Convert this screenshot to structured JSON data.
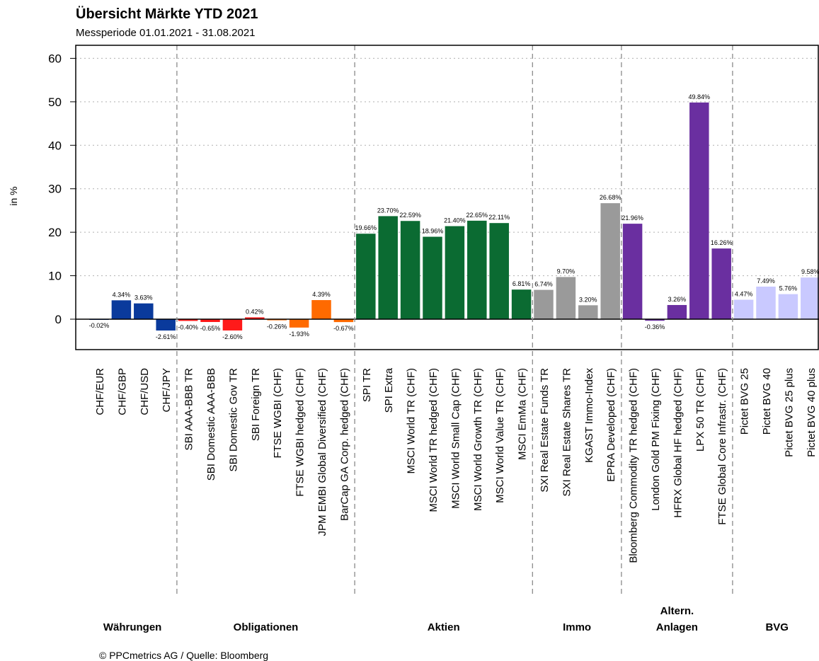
{
  "title": "Übersicht Märkte YTD 2021",
  "subtitle": "Messperiode 01.01.2021 - 31.08.2021",
  "footer": "© PPCmetrics AG / Quelle: Bloomberg",
  "chart_data": {
    "type": "bar",
    "ylabel": "in %",
    "ylim": [
      -7,
      63
    ],
    "yticks": [
      0,
      10,
      20,
      30,
      40,
      50,
      60
    ],
    "grid": true,
    "categories": [
      "CHF/EUR",
      "CHF/GBP",
      "CHF/USD",
      "CHF/JPY",
      "SBI AAA-BBB TR",
      "SBI Domestic AAA-BBB",
      "SBI Domestic Gov TR",
      "SBI Foreign TR",
      "FTSE WGBI (CHF)",
      "FTSE WGBI hedged (CHF)",
      "JPM EMBI Global Diversified (CHF)",
      "BarCap GA Corp. hedged (CHF)",
      "SPI TR",
      "SPI Extra",
      "MSCI World TR (CHF)",
      "MSCI World TR hedged (CHF)",
      "MSCI World Small Cap (CHF)",
      "MSCI World Growth TR (CHF)",
      "MSCI World Value TR (CHF)",
      "MSCI EmMa (CHF)",
      "SXI Real Estate Funds TR",
      "SXI Real Estate Shares TR",
      "KGAST Immo-Index",
      "EPRA Developed (CHF)",
      "Bloomberg Commodity TR hedged (CHF)",
      "London Gold PM Fixing (CHF)",
      "HFRX Global HF hedged (CHF)",
      "LPX 50 TR (CHF)",
      "FTSE Global Core Infrastr. (CHF)",
      "Pictet BVG 25",
      "Pictet BVG 40",
      "Pictet BVG 25 plus",
      "Pictet BVG 40 plus"
    ],
    "values": [
      -0.02,
      4.34,
      3.63,
      -2.61,
      -0.4,
      -0.65,
      -2.6,
      0.42,
      -0.26,
      -1.93,
      4.39,
      -0.67,
      19.66,
      23.7,
      22.59,
      18.96,
      21.4,
      22.65,
      22.11,
      6.81,
      6.74,
      9.7,
      3.2,
      26.68,
      21.96,
      -0.36,
      3.26,
      49.84,
      16.26,
      4.47,
      7.49,
      5.76,
      9.58
    ],
    "value_labels": [
      "-0.02%",
      "4.34%",
      "3.63%",
      "-2.61%",
      "-0.40%",
      "-0.65%",
      "-2.60%",
      "0.42%",
      "-0.26%",
      "-1.93%",
      "4.39%",
      "-0.67%",
      "19.66%",
      "23.70%",
      "22.59%",
      "18.96%",
      "21.40%",
      "22.65%",
      "22.11%",
      "6.81%",
      "6.74%",
      "9.70%",
      "3.20%",
      "26.68%",
      "21.96%",
      "-0.36%",
      "3.26%",
      "49.84%",
      "16.26%",
      "4.47%",
      "7.49%",
      "5.76%",
      "9.58%"
    ],
    "groups": [
      {
        "name": "Währungen",
        "count": 4,
        "color": "#0a3a9c"
      },
      {
        "name": "Obligationen",
        "count": 8,
        "color": "#ff1a1a",
        "alt_color": "#ff6a00",
        "alt_from": 4
      },
      {
        "name": "Aktien",
        "count": 8,
        "color": "#0b6b32"
      },
      {
        "name": "Immo",
        "count": 4,
        "color": "#9a9a9a"
      },
      {
        "name": "Altern.\nAnlagen",
        "count": 5,
        "color": "#6a2fa0"
      },
      {
        "name": "BVG",
        "count": 4,
        "color": "#c9c9ff"
      }
    ]
  }
}
